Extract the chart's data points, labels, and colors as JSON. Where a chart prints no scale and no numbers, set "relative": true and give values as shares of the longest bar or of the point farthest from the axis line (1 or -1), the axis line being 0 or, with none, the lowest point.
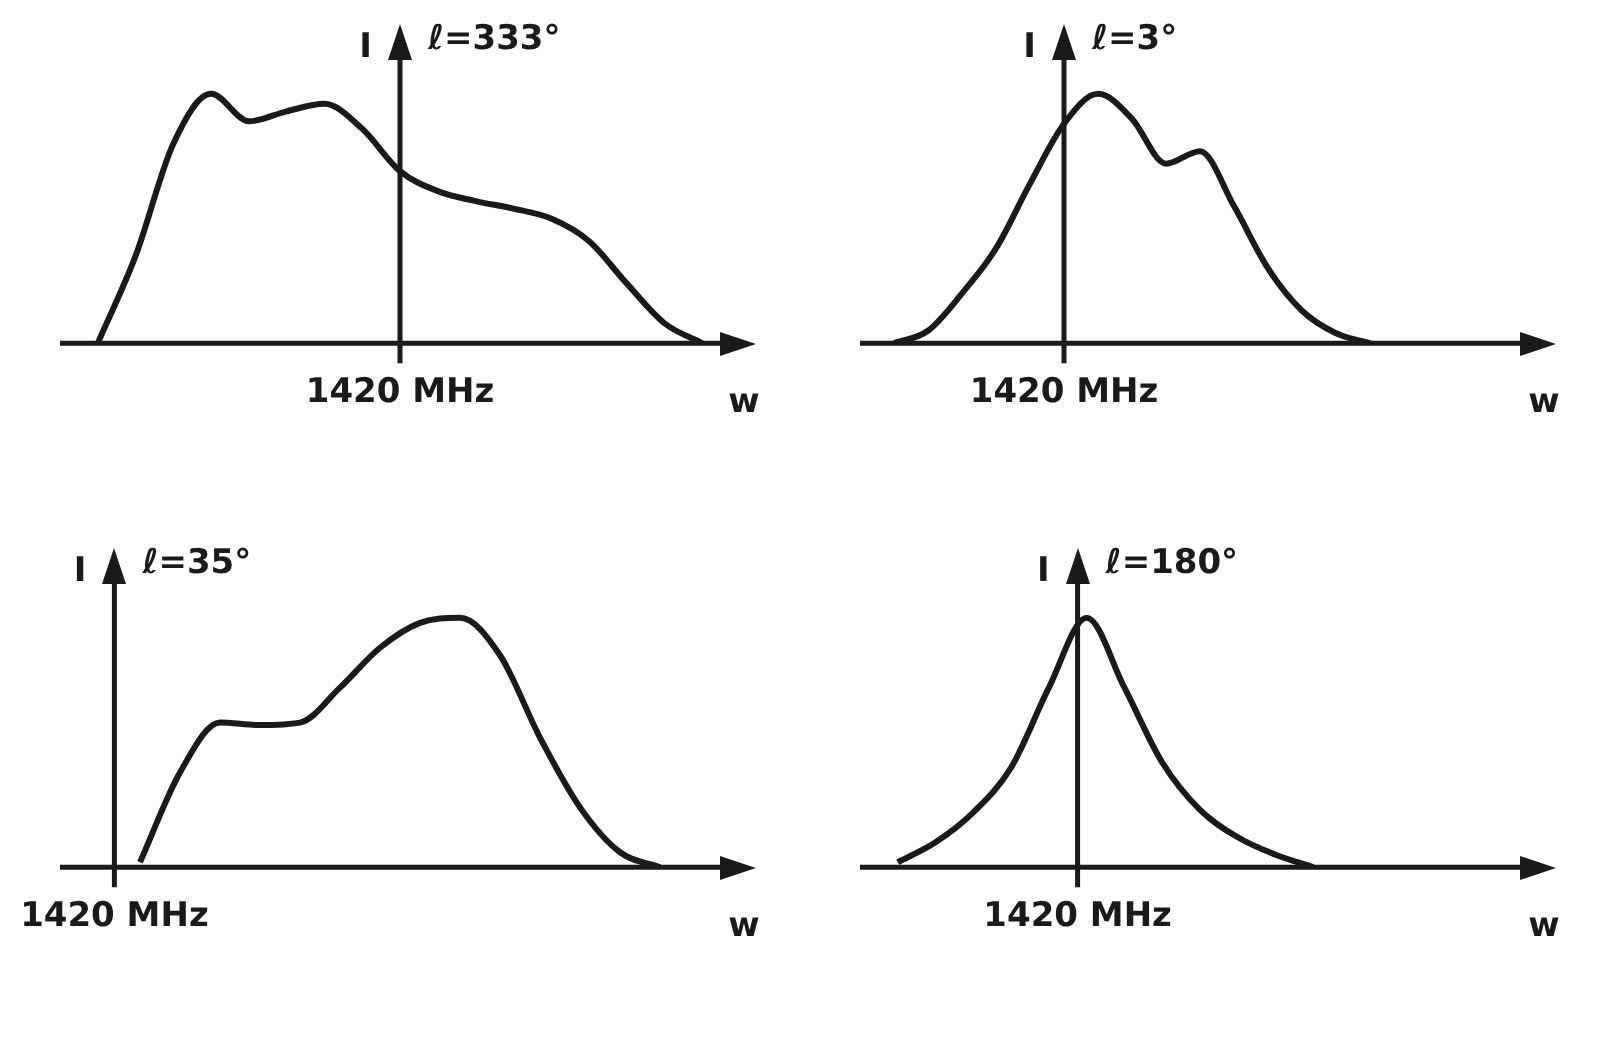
{
  "chart_data": [
    {
      "type": "line",
      "title": "ℓ=333°",
      "ylabel": "I",
      "xlabel": "w",
      "relative": true,
      "marker": "none",
      "line_style": "solid",
      "annotations": [
        "1420 MHz"
      ],
      "categories": [
        null,
        null,
        null,
        null,
        null,
        null,
        null,
        null,
        null,
        null,
        null,
        null,
        null,
        null,
        null,
        null,
        null,
        null,
        null
      ],
      "series": [
        {
          "color": "#1a1a1a",
          "values": [
            null,
            0,
            0.35,
            0.8,
            1,
            0.89,
            0.93,
            0.96,
            0.86,
            0.69,
            0.61,
            0.57,
            0.54,
            0.5,
            0.41,
            0.24,
            0.08,
            0,
            null
          ]
        }
      ]
    },
    {
      "type": "line",
      "title": "ℓ=3°",
      "ylabel": "I",
      "xlabel": "w",
      "relative": true,
      "marker": "none",
      "line_style": "solid",
      "annotations": [
        "1420 MHz"
      ],
      "categories": [
        null,
        null,
        null,
        null,
        null,
        null,
        null,
        null,
        null,
        null,
        null,
        null,
        null,
        null,
        null,
        null,
        null,
        null,
        null,
        null,
        null
      ],
      "series": [
        {
          "color": "#1a1a1a",
          "values": [
            null,
            0,
            0.05,
            0.2,
            0.38,
            0.64,
            0.88,
            1,
            0.9,
            0.72,
            0.77,
            0.55,
            0.3,
            0.13,
            0.04,
            0,
            null,
            null,
            null,
            null,
            null
          ]
        }
      ]
    },
    {
      "type": "line",
      "title": "ℓ=35°",
      "ylabel": "I",
      "xlabel": "w",
      "relative": true,
      "marker": "none",
      "line_style": "solid",
      "annotations": [
        "1420 MHz"
      ],
      "categories": [
        null,
        null,
        null,
        null,
        null,
        null,
        null,
        null,
        null,
        null,
        null,
        null,
        null,
        null,
        null,
        null,
        null,
        null
      ],
      "series": [
        {
          "color": "#1a1a1a",
          "values": [
            null,
            null,
            0.02,
            0.38,
            0.58,
            0.57,
            0.58,
            0.72,
            0.88,
            0.98,
            1,
            0.85,
            0.52,
            0.24,
            0.06,
            0,
            null,
            null
          ]
        }
      ]
    },
    {
      "type": "line",
      "title": "ℓ=180°",
      "ylabel": "I",
      "xlabel": "w",
      "relative": true,
      "marker": "none",
      "line_style": "solid",
      "annotations": [
        "1420 MHz"
      ],
      "categories": [
        null,
        null,
        null,
        null,
        null,
        null,
        null,
        null,
        null,
        null,
        null,
        null,
        null,
        null,
        null,
        null,
        null,
        null,
        null
      ],
      "series": [
        {
          "color": "#1a1a1a",
          "values": [
            null,
            0.02,
            0.1,
            0.22,
            0.4,
            0.72,
            1,
            0.72,
            0.42,
            0.23,
            0.12,
            0.05,
            0,
            null,
            null,
            null,
            null,
            null,
            null
          ]
        }
      ]
    }
  ]
}
